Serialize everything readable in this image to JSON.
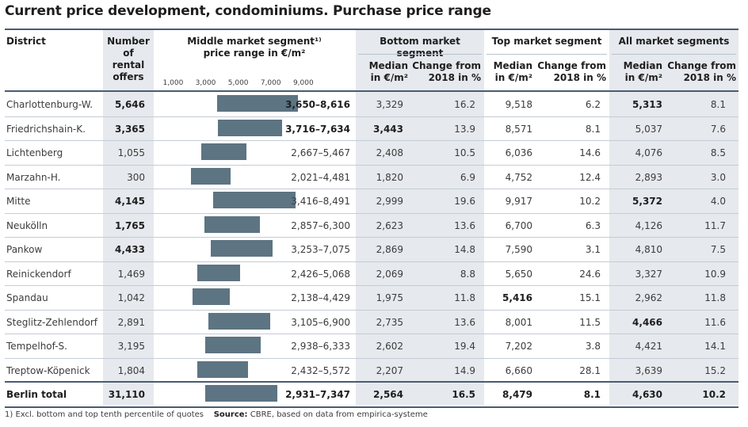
{
  "title": "Current price development, condominiums. Purchase price range",
  "headers": {
    "district": "District",
    "rental_offers": [
      "Number",
      "of",
      "rental",
      "offers"
    ],
    "middle_segment": [
      "Middle market segment¹⁾",
      "price range in €/m²"
    ],
    "bottom_segment": "Bottom market segment",
    "top_segment": "Top market segment",
    "all_segments": "All market segments",
    "median": [
      "Median",
      "in €/m²"
    ],
    "change": [
      "Change from",
      "2018 in %"
    ]
  },
  "axis_ticks": [
    "1,000",
    "3,000",
    "5,000",
    "7,000",
    "9,000"
  ],
  "footnote": {
    "note": "1) Excl. bottom and top tenth percentile of quotes",
    "source_label": "Source:",
    "source_text": "CBRE, based on data from empirica-systeme"
  },
  "colors": {
    "bar": "#5d7483",
    "shade": "#e6e9ed",
    "rule": "#4a5c72"
  },
  "chart_data": {
    "type": "table",
    "title": "Current price development, condominiums. Purchase price range",
    "range_axis": {
      "min": 1000,
      "max": 9000,
      "ticks": [
        1000,
        3000,
        5000,
        7000,
        9000
      ],
      "unit": "€/m²"
    },
    "rows": [
      {
        "district": "Charlottenburg-W.",
        "offers": "5,646",
        "lo": 3650,
        "hi": 8616,
        "range": "3,650–8,616",
        "bottom_median": "3,329",
        "bottom_change": "16.2",
        "top_median": "9,518",
        "top_change": "6.2",
        "all_median": "5,313",
        "all_change": "8.1",
        "bold": false
      },
      {
        "district": "Friedrichshain-K.",
        "offers": "3,365",
        "lo": 3716,
        "hi": 7634,
        "range": "3,716–7,634",
        "bottom_median": "3,443",
        "bottom_change": "13.9",
        "top_median": "8,571",
        "top_change": "8.1",
        "all_median": "5,037",
        "all_change": "7.6",
        "bold": false
      },
      {
        "district": "Lichtenberg",
        "offers": "1,055",
        "lo": 2667,
        "hi": 5467,
        "range": "2,667–5,467",
        "bottom_median": "2,408",
        "bottom_change": "10.5",
        "top_median": "6,036",
        "top_change": "14.6",
        "all_median": "4,076",
        "all_change": "8.5",
        "bold": false
      },
      {
        "district": "Marzahn-H.",
        "offers": "300",
        "lo": 2021,
        "hi": 4481,
        "range": "2,021–4,481",
        "bottom_median": "1,820",
        "bottom_change": "6.9",
        "top_median": "4,752",
        "top_change": "12.4",
        "all_median": "2,893",
        "all_change": "3.0",
        "bold": false
      },
      {
        "district": "Mitte",
        "offers": "4,145",
        "lo": 3416,
        "hi": 8491,
        "range": "3,416–8,491",
        "bottom_median": "2,999",
        "bottom_change": "19.6",
        "top_median": "9,917",
        "top_change": "10.2",
        "all_median": "5,372",
        "all_change": "4.0",
        "bold": false
      },
      {
        "district": "Neukölln",
        "offers": "1,765",
        "lo": 2857,
        "hi": 6300,
        "range": "2,857–6,300",
        "bottom_median": "2,623",
        "bottom_change": "13.6",
        "top_median": "6,700",
        "top_change": "6.3",
        "all_median": "4,126",
        "all_change": "11.7",
        "bold": false
      },
      {
        "district": "Pankow",
        "offers": "4,433",
        "lo": 3253,
        "hi": 7075,
        "range": "3,253–7,075",
        "bottom_median": "2,869",
        "bottom_change": "14.8",
        "top_median": "7,590",
        "top_change": "3.1",
        "all_median": "4,810",
        "all_change": "7.5",
        "bold": false
      },
      {
        "district": "Reinickendorf",
        "offers": "1,469",
        "lo": 2426,
        "hi": 5068,
        "range": "2,426–5,068",
        "bottom_median": "2,069",
        "bottom_change": "8.8",
        "top_median": "5,650",
        "top_change": "24.6",
        "all_median": "3,327",
        "all_change": "10.9",
        "bold": false
      },
      {
        "district": "Spandau",
        "offers": "1,042",
        "lo": 2138,
        "hi": 4429,
        "range": "2,138–4,429",
        "bottom_median": "1,975",
        "bottom_change": "11.8",
        "top_median": "5,416",
        "top_change": "15.1",
        "all_median": "2,962",
        "all_change": "11.8",
        "bold": false
      },
      {
        "district": "Steglitz-Zehlendorf",
        "offers": "2,891",
        "lo": 3105,
        "hi": 6900,
        "range": "3,105–6,900",
        "bottom_median": "2,735",
        "bottom_change": "13.6",
        "top_median": "8,001",
        "top_change": "11.5",
        "all_median": "4,466",
        "all_change": "11.6",
        "bold": false
      },
      {
        "district": "Tempelhof-S.",
        "offers": "3,195",
        "lo": 2938,
        "hi": 6333,
        "range": "2,938–6,333",
        "bottom_median": "2,602",
        "bottom_change": "19.4",
        "top_median": "7,202",
        "top_change": "3.8",
        "all_median": "4,421",
        "all_change": "14.1",
        "bold": false
      },
      {
        "district": "Treptow-Köpenick",
        "offers": "1,804",
        "lo": 2432,
        "hi": 5572,
        "range": "2,432–5,572",
        "bottom_median": "2,207",
        "bottom_change": "14.9",
        "top_median": "6,660",
        "top_change": "28.1",
        "all_median": "3,639",
        "all_change": "15.2",
        "bold": false
      },
      {
        "district": "Berlin total",
        "offers": "31,110",
        "lo": 2931,
        "hi": 7347,
        "range": "2,931–7,347",
        "bottom_median": "2,564",
        "bottom_change": "16.5",
        "top_median": "8,479",
        "top_change": "8.1",
        "all_median": "4,630",
        "all_change": "10.2",
        "bold": true
      }
    ]
  }
}
